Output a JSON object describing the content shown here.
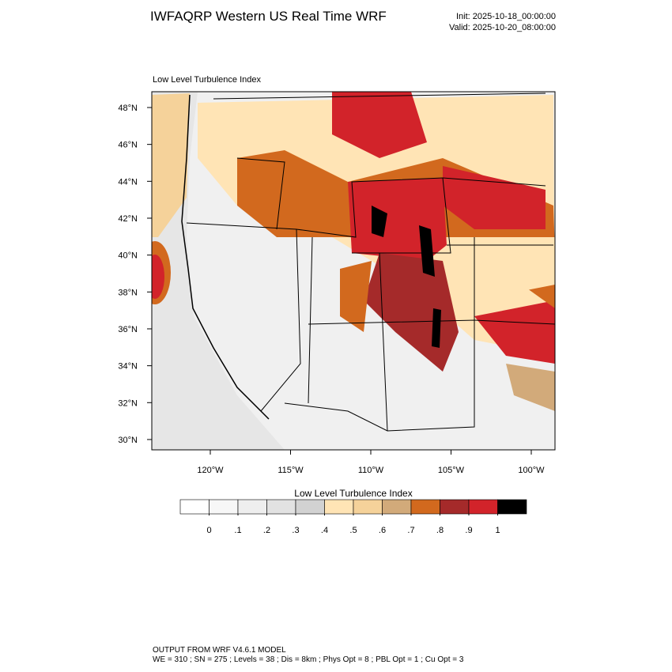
{
  "header": {
    "title": "IWFAQRP Western US Real Time WRF",
    "init": "Init: 2025-10-18_00:00:00",
    "valid": "Valid: 2025-10-20_08:00:00"
  },
  "map": {
    "label": "Low Level Turbulence Index",
    "lat_ticks": [
      {
        "value": 48,
        "label": "48°N"
      },
      {
        "value": 46,
        "label": "46°N"
      },
      {
        "value": 44,
        "label": "44°N"
      },
      {
        "value": 42,
        "label": "42°N"
      },
      {
        "value": 40,
        "label": "40°N"
      },
      {
        "value": 38,
        "label": "38°N"
      },
      {
        "value": 36,
        "label": "36°N"
      },
      {
        "value": 34,
        "label": "34°N"
      },
      {
        "value": 32,
        "label": "32°N"
      },
      {
        "value": 30,
        "label": "30°N"
      }
    ],
    "lon_ticks": [
      {
        "value": -120,
        "label": "120°W"
      },
      {
        "value": -115,
        "label": "115°W"
      },
      {
        "value": -110,
        "label": "110°W"
      },
      {
        "value": -105,
        "label": "105°W"
      },
      {
        "value": -100,
        "label": "100°W"
      }
    ]
  },
  "colorbar": {
    "title": "Low Level Turbulence Index",
    "colors": [
      "#ffffff",
      "#f7f7f7",
      "#eeeeee",
      "#e2e2e2",
      "#d2d2d2",
      "#ffe4b5",
      "#f5d29a",
      "#d2aa7a",
      "#d2691e",
      "#a52a2a",
      "#d2232a",
      "#000000"
    ],
    "levels": [
      0,
      {
        "value": 0.1,
        "label": ".1"
      },
      {
        "value": 0.2,
        "label": ".2"
      },
      {
        "value": 0.3,
        "label": ".3"
      },
      {
        "value": 0.4,
        "label": ".4"
      },
      {
        "value": 0.5,
        "label": ".5"
      },
      {
        "value": 0.6,
        "label": ".6"
      },
      {
        "value": 0.7,
        "label": ".7"
      },
      {
        "value": 0.8,
        "label": ".8"
      },
      {
        "value": 0.9,
        "label": ".9"
      },
      1
    ]
  },
  "footer": {
    "line1": "OUTPUT FROM WRF V4.6.1 MODEL",
    "line2": "WE = 310 ; SN = 275 ; Levels = 38 ; Dis = 8km ; Phys Opt = 8 ; PBL Opt = 1 ; Cu Opt = 3"
  }
}
